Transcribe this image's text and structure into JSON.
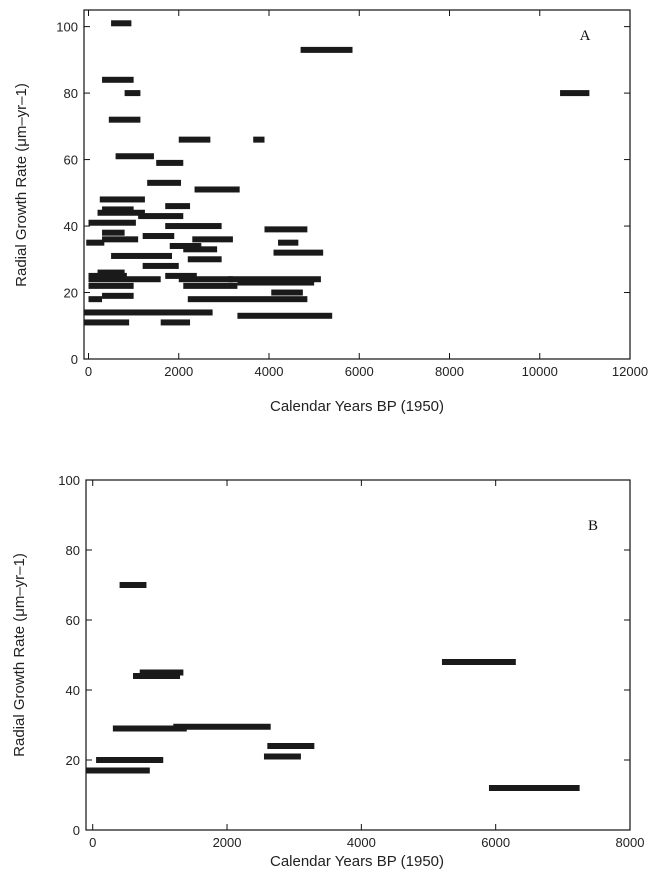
{
  "chart_data": [
    {
      "type": "bar",
      "panel_label": "A",
      "xlabel": "Calendar Years BP (1950)",
      "ylabel": "Radial Growth Rate (μm–yr–1)",
      "xlim": [
        -100,
        12000
      ],
      "ylim": [
        0,
        105
      ],
      "xticks": [
        0,
        2000,
        4000,
        6000,
        8000,
        10000,
        12000
      ],
      "yticks": [
        0,
        20,
        40,
        60,
        80,
        100
      ],
      "intervals": [
        {
          "x_start": 500,
          "x_end": 950,
          "y": 101
        },
        {
          "x_start": 4700,
          "x_end": 5850,
          "y": 93
        },
        {
          "x_start": 300,
          "x_end": 1000,
          "y": 84
        },
        {
          "x_start": 800,
          "x_end": 1150,
          "y": 80
        },
        {
          "x_start": 10450,
          "x_end": 11100,
          "y": 80
        },
        {
          "x_start": 450,
          "x_end": 1150,
          "y": 72
        },
        {
          "x_start": 2000,
          "x_end": 2700,
          "y": 66
        },
        {
          "x_start": 3650,
          "x_end": 3900,
          "y": 66
        },
        {
          "x_start": 600,
          "x_end": 1450,
          "y": 61
        },
        {
          "x_start": 1500,
          "x_end": 2100,
          "y": 59
        },
        {
          "x_start": 1300,
          "x_end": 2050,
          "y": 53
        },
        {
          "x_start": 2350,
          "x_end": 3350,
          "y": 51
        },
        {
          "x_start": 250,
          "x_end": 1250,
          "y": 48
        },
        {
          "x_start": 1700,
          "x_end": 2250,
          "y": 46
        },
        {
          "x_start": 300,
          "x_end": 1000,
          "y": 45
        },
        {
          "x_start": 200,
          "x_end": 1250,
          "y": 44
        },
        {
          "x_start": 1100,
          "x_end": 2100,
          "y": 43
        },
        {
          "x_start": 0,
          "x_end": 1050,
          "y": 41
        },
        {
          "x_start": 1700,
          "x_end": 2950,
          "y": 40
        },
        {
          "x_start": 3900,
          "x_end": 4850,
          "y": 39
        },
        {
          "x_start": 300,
          "x_end": 800,
          "y": 38
        },
        {
          "x_start": 300,
          "x_end": 1100,
          "y": 36
        },
        {
          "x_start": 1200,
          "x_end": 1900,
          "y": 37
        },
        {
          "x_start": 2300,
          "x_end": 3200,
          "y": 36
        },
        {
          "x_start": -50,
          "x_end": 350,
          "y": 35
        },
        {
          "x_start": 4200,
          "x_end": 4650,
          "y": 35
        },
        {
          "x_start": 1800,
          "x_end": 2500,
          "y": 34
        },
        {
          "x_start": 2100,
          "x_end": 2850,
          "y": 33
        },
        {
          "x_start": 500,
          "x_end": 1850,
          "y": 31
        },
        {
          "x_start": 4100,
          "x_end": 5200,
          "y": 32
        },
        {
          "x_start": 2200,
          "x_end": 2950,
          "y": 30
        },
        {
          "x_start": 1200,
          "x_end": 2000,
          "y": 28
        },
        {
          "x_start": 200,
          "x_end": 800,
          "y": 26
        },
        {
          "x_start": 0,
          "x_end": 850,
          "y": 25
        },
        {
          "x_start": 1700,
          "x_end": 2400,
          "y": 25
        },
        {
          "x_start": 0,
          "x_end": 1600,
          "y": 24
        },
        {
          "x_start": 2000,
          "x_end": 3200,
          "y": 24
        },
        {
          "x_start": 3100,
          "x_end": 5150,
          "y": 24
        },
        {
          "x_start": 0,
          "x_end": 1000,
          "y": 22
        },
        {
          "x_start": 2100,
          "x_end": 3300,
          "y": 22
        },
        {
          "x_start": 3300,
          "x_end": 5000,
          "y": 23
        },
        {
          "x_start": 4050,
          "x_end": 4750,
          "y": 20
        },
        {
          "x_start": 300,
          "x_end": 1000,
          "y": 19
        },
        {
          "x_start": 2200,
          "x_end": 4850,
          "y": 18
        },
        {
          "x_start": 0,
          "x_end": 300,
          "y": 18
        },
        {
          "x_start": -100,
          "x_end": 2750,
          "y": 14
        },
        {
          "x_start": 3300,
          "x_end": 5400,
          "y": 13
        },
        {
          "x_start": -100,
          "x_end": 900,
          "y": 11
        },
        {
          "x_start": 1600,
          "x_end": 2250,
          "y": 11
        }
      ]
    },
    {
      "type": "bar",
      "panel_label": "B",
      "xlabel": "Calendar Years BP (1950)",
      "ylabel": "Radial Growth Rate (μm–yr–1)",
      "xlim": [
        -100,
        8000
      ],
      "ylim": [
        0,
        100
      ],
      "xticks": [
        0,
        2000,
        4000,
        6000,
        8000
      ],
      "yticks": [
        0,
        20,
        40,
        60,
        80,
        100
      ],
      "intervals": [
        {
          "x_start": 400,
          "x_end": 800,
          "y": 70
        },
        {
          "x_start": 5200,
          "x_end": 6300,
          "y": 48
        },
        {
          "x_start": 700,
          "x_end": 1350,
          "y": 45
        },
        {
          "x_start": 600,
          "x_end": 1300,
          "y": 44
        },
        {
          "x_start": 300,
          "x_end": 1400,
          "y": 29
        },
        {
          "x_start": 1200,
          "x_end": 2650,
          "y": 29.5
        },
        {
          "x_start": 2600,
          "x_end": 3300,
          "y": 24
        },
        {
          "x_start": 2550,
          "x_end": 3100,
          "y": 21
        },
        {
          "x_start": 50,
          "x_end": 1050,
          "y": 20
        },
        {
          "x_start": -100,
          "x_end": 850,
          "y": 17
        },
        {
          "x_start": 5900,
          "x_end": 7250,
          "y": 12
        }
      ]
    }
  ]
}
